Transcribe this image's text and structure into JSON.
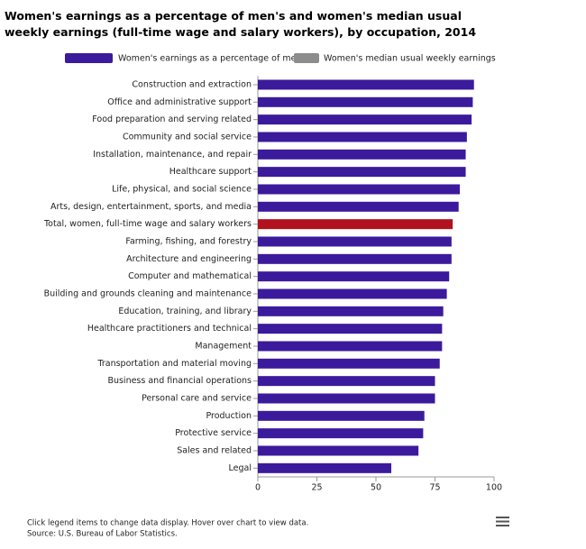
{
  "chart_data": {
    "type": "hbar",
    "title": "Women's earnings as a percentage of men's and women's median usual weekly earnings (full-time wage and salary workers), by occupation, 2014",
    "categories": [
      "Construction and extraction",
      "Office and administrative support",
      "Food preparation and serving related",
      "Community and social service",
      "Installation, maintenance, and repair",
      "Healthcare support",
      "Life, physical, and social science",
      "Arts, design, entertainment, sports, and media",
      "Total, women, full-time wage and salary workers",
      "Farming, fishing, and forestry",
      "Architecture and engineering",
      "Computer and mathematical",
      "Building and grounds cleaning and maintenance",
      "Education, training, and library",
      "Healthcare practitioners and technical",
      "Management",
      "Transportation and material moving",
      "Business and financial operations",
      "Personal care and service",
      "Production",
      "Protective service",
      "Sales and related",
      "Legal"
    ],
    "series": [
      {
        "name": "Women's earnings as a percentage of men's",
        "color": "#3b1a9c",
        "values": [
          91.5,
          91,
          90.5,
          88.5,
          88,
          88,
          85.5,
          85,
          82.5,
          82,
          82,
          81,
          80,
          78.5,
          78,
          78,
          77,
          75,
          75,
          70.5,
          70,
          68,
          56.5
        ],
        "colors": [
          "#3b1a9c",
          "#3b1a9c",
          "#3b1a9c",
          "#3b1a9c",
          "#3b1a9c",
          "#3b1a9c",
          "#3b1a9c",
          "#3b1a9c",
          "#b2111e",
          "#3b1a9c",
          "#3b1a9c",
          "#3b1a9c",
          "#3b1a9c",
          "#3b1a9c",
          "#3b1a9c",
          "#3b1a9c",
          "#3b1a9c",
          "#3b1a9c",
          "#3b1a9c",
          "#3b1a9c",
          "#3b1a9c",
          "#3b1a9c",
          "#3b1a9c"
        ]
      }
    ],
    "inactive_legend": [
      {
        "name": "Women's median usual weekly earnings",
        "color": "#8c8c8c"
      }
    ],
    "xlim": [
      0,
      100
    ],
    "xticks": [
      0,
      25,
      50,
      75,
      100
    ],
    "grid": false,
    "notes": [
      "Click legend items to change data display. Hover over chart to view data.",
      "Source: U.S. Bureau of Labor Statistics."
    ]
  }
}
